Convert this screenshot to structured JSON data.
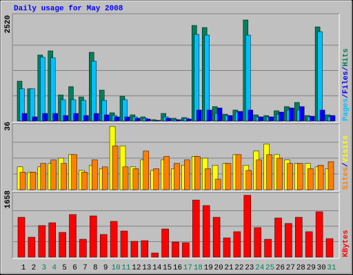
{
  "chart_data": {
    "type": "bar",
    "title": "Daily usage for May 2008",
    "categories": [
      "1",
      "2",
      "3",
      "4",
      "5",
      "6",
      "7",
      "8",
      "9",
      "10",
      "11",
      "12",
      "13",
      "14",
      "15",
      "16",
      "17",
      "18",
      "19",
      "20",
      "21",
      "22",
      "23",
      "24",
      "25",
      "26",
      "27",
      "28",
      "29",
      "30",
      "31"
    ],
    "category_colors": [
      "#000000",
      "#000000",
      "#00805c",
      "#00805c",
      "#000000",
      "#000000",
      "#000000",
      "#000000",
      "#000000",
      "#00805c",
      "#00805c",
      "#000000",
      "#000000",
      "#000000",
      "#000000",
      "#000000",
      "#00805c",
      "#00805c",
      "#000000",
      "#000000",
      "#000000",
      "#000000",
      "#000000",
      "#00805c",
      "#00805c",
      "#000000",
      "#000000",
      "#000000",
      "#000000",
      "#000000",
      "#00805c"
    ],
    "legend_separator": "/",
    "panels": [
      {
        "ylim": [
          0,
          2520
        ],
        "yticks": [
          2520
        ],
        "series": [
          {
            "name": "Hits",
            "color": "#00805c",
            "values": [
              994,
              806,
              1646,
              1749,
              651,
              857,
              600,
              1714,
              771,
              206,
              617,
              154,
              103,
              34,
              189,
              69,
              86,
              2383,
              2331,
              360,
              171,
              274,
              2520,
              154,
              137,
              257,
              360,
              463,
              137,
              2348,
              154
            ]
          },
          {
            "name": "Files",
            "color": "#0000ff",
            "values": [
              189,
              103,
              189,
              189,
              137,
              189,
              137,
              189,
              154,
              103,
              103,
              69,
              51,
              17,
              69,
              34,
              51,
              274,
              274,
              326,
              137,
              240,
              274,
              103,
              103,
              223,
              326,
              360,
              120,
              274,
              137
            ]
          },
          {
            "name": "Pages",
            "color": "#00c0ff",
            "values": [
              806,
              806,
              1594,
              1577,
              531,
              531,
              514,
              1491,
              514,
              137,
              531,
              103,
              69,
              17,
              103,
              34,
              69,
              2160,
              2143,
              189,
              137,
              223,
              2143,
              103,
              103,
              171,
              274,
              274,
              103,
              2228,
              103
            ]
          }
        ]
      },
      {
        "ylim": [
          0,
          36
        ],
        "yticks": [
          36
        ],
        "series": [
          {
            "name": "Visits",
            "color": "#ffff00",
            "values": [
              13,
              10,
              13,
              15,
              18,
              20,
              11,
              14,
              12,
              36,
              25,
              13,
              17,
              11,
              17,
              12,
              14,
              19,
              18,
              14,
              15,
              20,
              14,
              22,
              26,
              20,
              17,
              15,
              15,
              13,
              12
            ]
          },
          {
            "name": "Sites",
            "color": "#ff8000",
            "values": [
              10,
              10,
              15,
              17,
              15,
              20,
              10,
              17,
              13,
              25,
              13,
              12,
              22,
              12,
              19,
              15,
              17,
              19,
              12,
              6,
              15,
              20,
              11,
              17,
              20,
              18,
              15,
              15,
              12,
              14,
              16
            ]
          }
        ]
      },
      {
        "ylim": [
          0,
          1658
        ],
        "yticks": [
          1658
        ],
        "series": [
          {
            "name": "KBytes",
            "color": "#ff0000",
            "values": [
              1068,
              534,
              847,
              921,
              663,
              1142,
              479,
              1105,
              608,
              958,
              700,
              424,
              442,
              111,
              755,
              405,
              387,
              1529,
              1382,
              1068,
              516,
              682,
              1658,
              792,
              479,
              1050,
              903,
              1068,
              682,
              1216,
              497
            ]
          }
        ]
      }
    ]
  }
}
